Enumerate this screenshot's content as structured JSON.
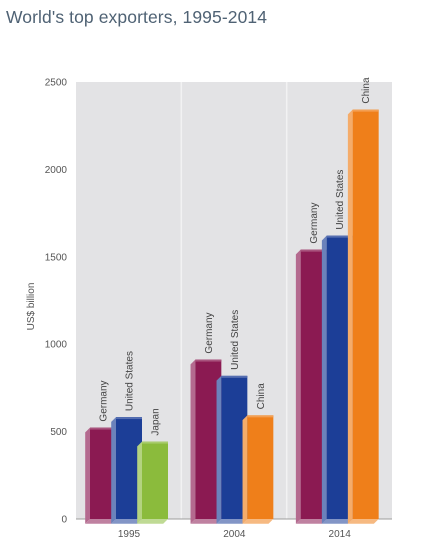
{
  "chart_data": {
    "type": "bar",
    "title": "World's top exporters, 1995-2014",
    "ylabel": "US$ billion",
    "xlabel": "",
    "ylim": [
      0,
      2500
    ],
    "yticks": [
      0,
      500,
      1000,
      1500,
      2000,
      2500
    ],
    "grid": false,
    "groups": [
      {
        "year": "1995",
        "bars": [
          {
            "country": "Germany",
            "value": 523,
            "color": "#8b1a52"
          },
          {
            "country": "United States",
            "value": 583,
            "color": "#1c3e97"
          },
          {
            "country": "Japan",
            "value": 443,
            "color": "#8bbb3c"
          }
        ]
      },
      {
        "year": "2004",
        "bars": [
          {
            "country": "Germany",
            "value": 912,
            "color": "#8b1a52"
          },
          {
            "country": "United States",
            "value": 819,
            "color": "#1c3e97"
          },
          {
            "country": "China",
            "value": 593,
            "color": "#ef7f1a"
          }
        ]
      },
      {
        "year": "2014",
        "bars": [
          {
            "country": "Germany",
            "value": 1541,
            "color": "#8b1a52"
          },
          {
            "country": "United States",
            "value": 1621,
            "color": "#1c3e97"
          },
          {
            "country": "China",
            "value": 2342,
            "color": "#ef7f1a"
          }
        ]
      }
    ]
  }
}
